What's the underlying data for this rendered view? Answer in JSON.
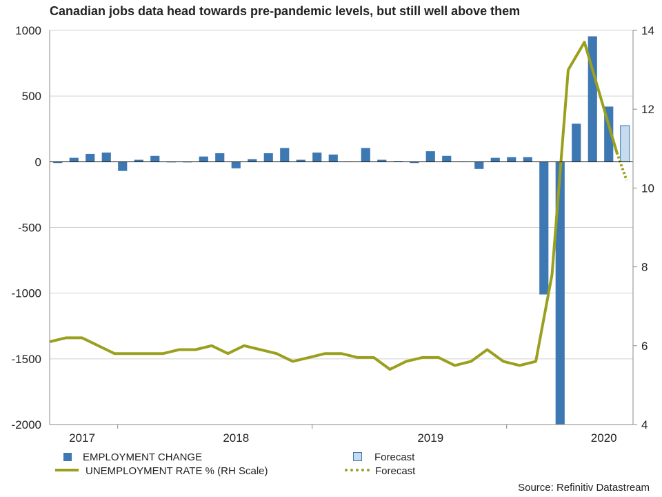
{
  "chart_data": {
    "type": "bar",
    "title": "Canadian jobs data head towards pre-pandemic levels, but still well above them",
    "source": "Source: Refinitiv Datastream",
    "left_axis": {
      "ylim": [
        -2000,
        1000
      ],
      "ticks": [
        1000,
        500,
        0,
        -500,
        -1000,
        -1500,
        -2000
      ]
    },
    "right_axis": {
      "ylim": [
        4,
        14
      ],
      "ticks": [
        14,
        12,
        10,
        8,
        6,
        4
      ]
    },
    "x_labels": [
      {
        "label": "2017",
        "index": 1.5
      },
      {
        "label": "2018",
        "index": 11
      },
      {
        "label": "2019",
        "index": 23
      },
      {
        "label": "2020",
        "index": 33.7
      }
    ],
    "year_boundaries": [
      3.7,
      15.7,
      27.7
    ],
    "employment_change": [
      -10,
      30,
      60,
      70,
      -70,
      15,
      45,
      -5,
      -5,
      40,
      65,
      -50,
      20,
      65,
      105,
      15,
      70,
      55,
      0,
      105,
      15,
      5,
      -10,
      80,
      45,
      0,
      -55,
      30,
      35,
      35,
      -1010,
      -2000,
      290,
      955,
      420
    ],
    "employment_forecast": {
      "index": 35,
      "value": 275
    },
    "unemployment_rate": [
      6.1,
      6.2,
      6.2,
      6.0,
      5.8,
      5.8,
      5.8,
      5.8,
      5.9,
      5.9,
      6.0,
      5.8,
      6.0,
      5.9,
      5.8,
      5.6,
      5.7,
      5.8,
      5.8,
      5.7,
      5.7,
      5.4,
      5.6,
      5.7,
      5.7,
      5.5,
      5.6,
      5.9,
      5.6,
      5.5,
      5.6,
      7.8,
      13.0,
      13.7,
      12.3,
      10.9
    ],
    "unemployment_forecast": [
      10.9,
      10.2
    ],
    "colors": {
      "bar": "#3e78b2",
      "forecast_bar": "#c6dbef",
      "line": "#9aa01e",
      "grid": "#d0d0d0"
    },
    "legend": {
      "employment": "EMPLOYMENT CHANGE",
      "bar_forecast": "Forecast",
      "unemployment": "UNEMPLOYMENT RATE % (RH Scale)",
      "line_forecast": "Forecast"
    }
  }
}
